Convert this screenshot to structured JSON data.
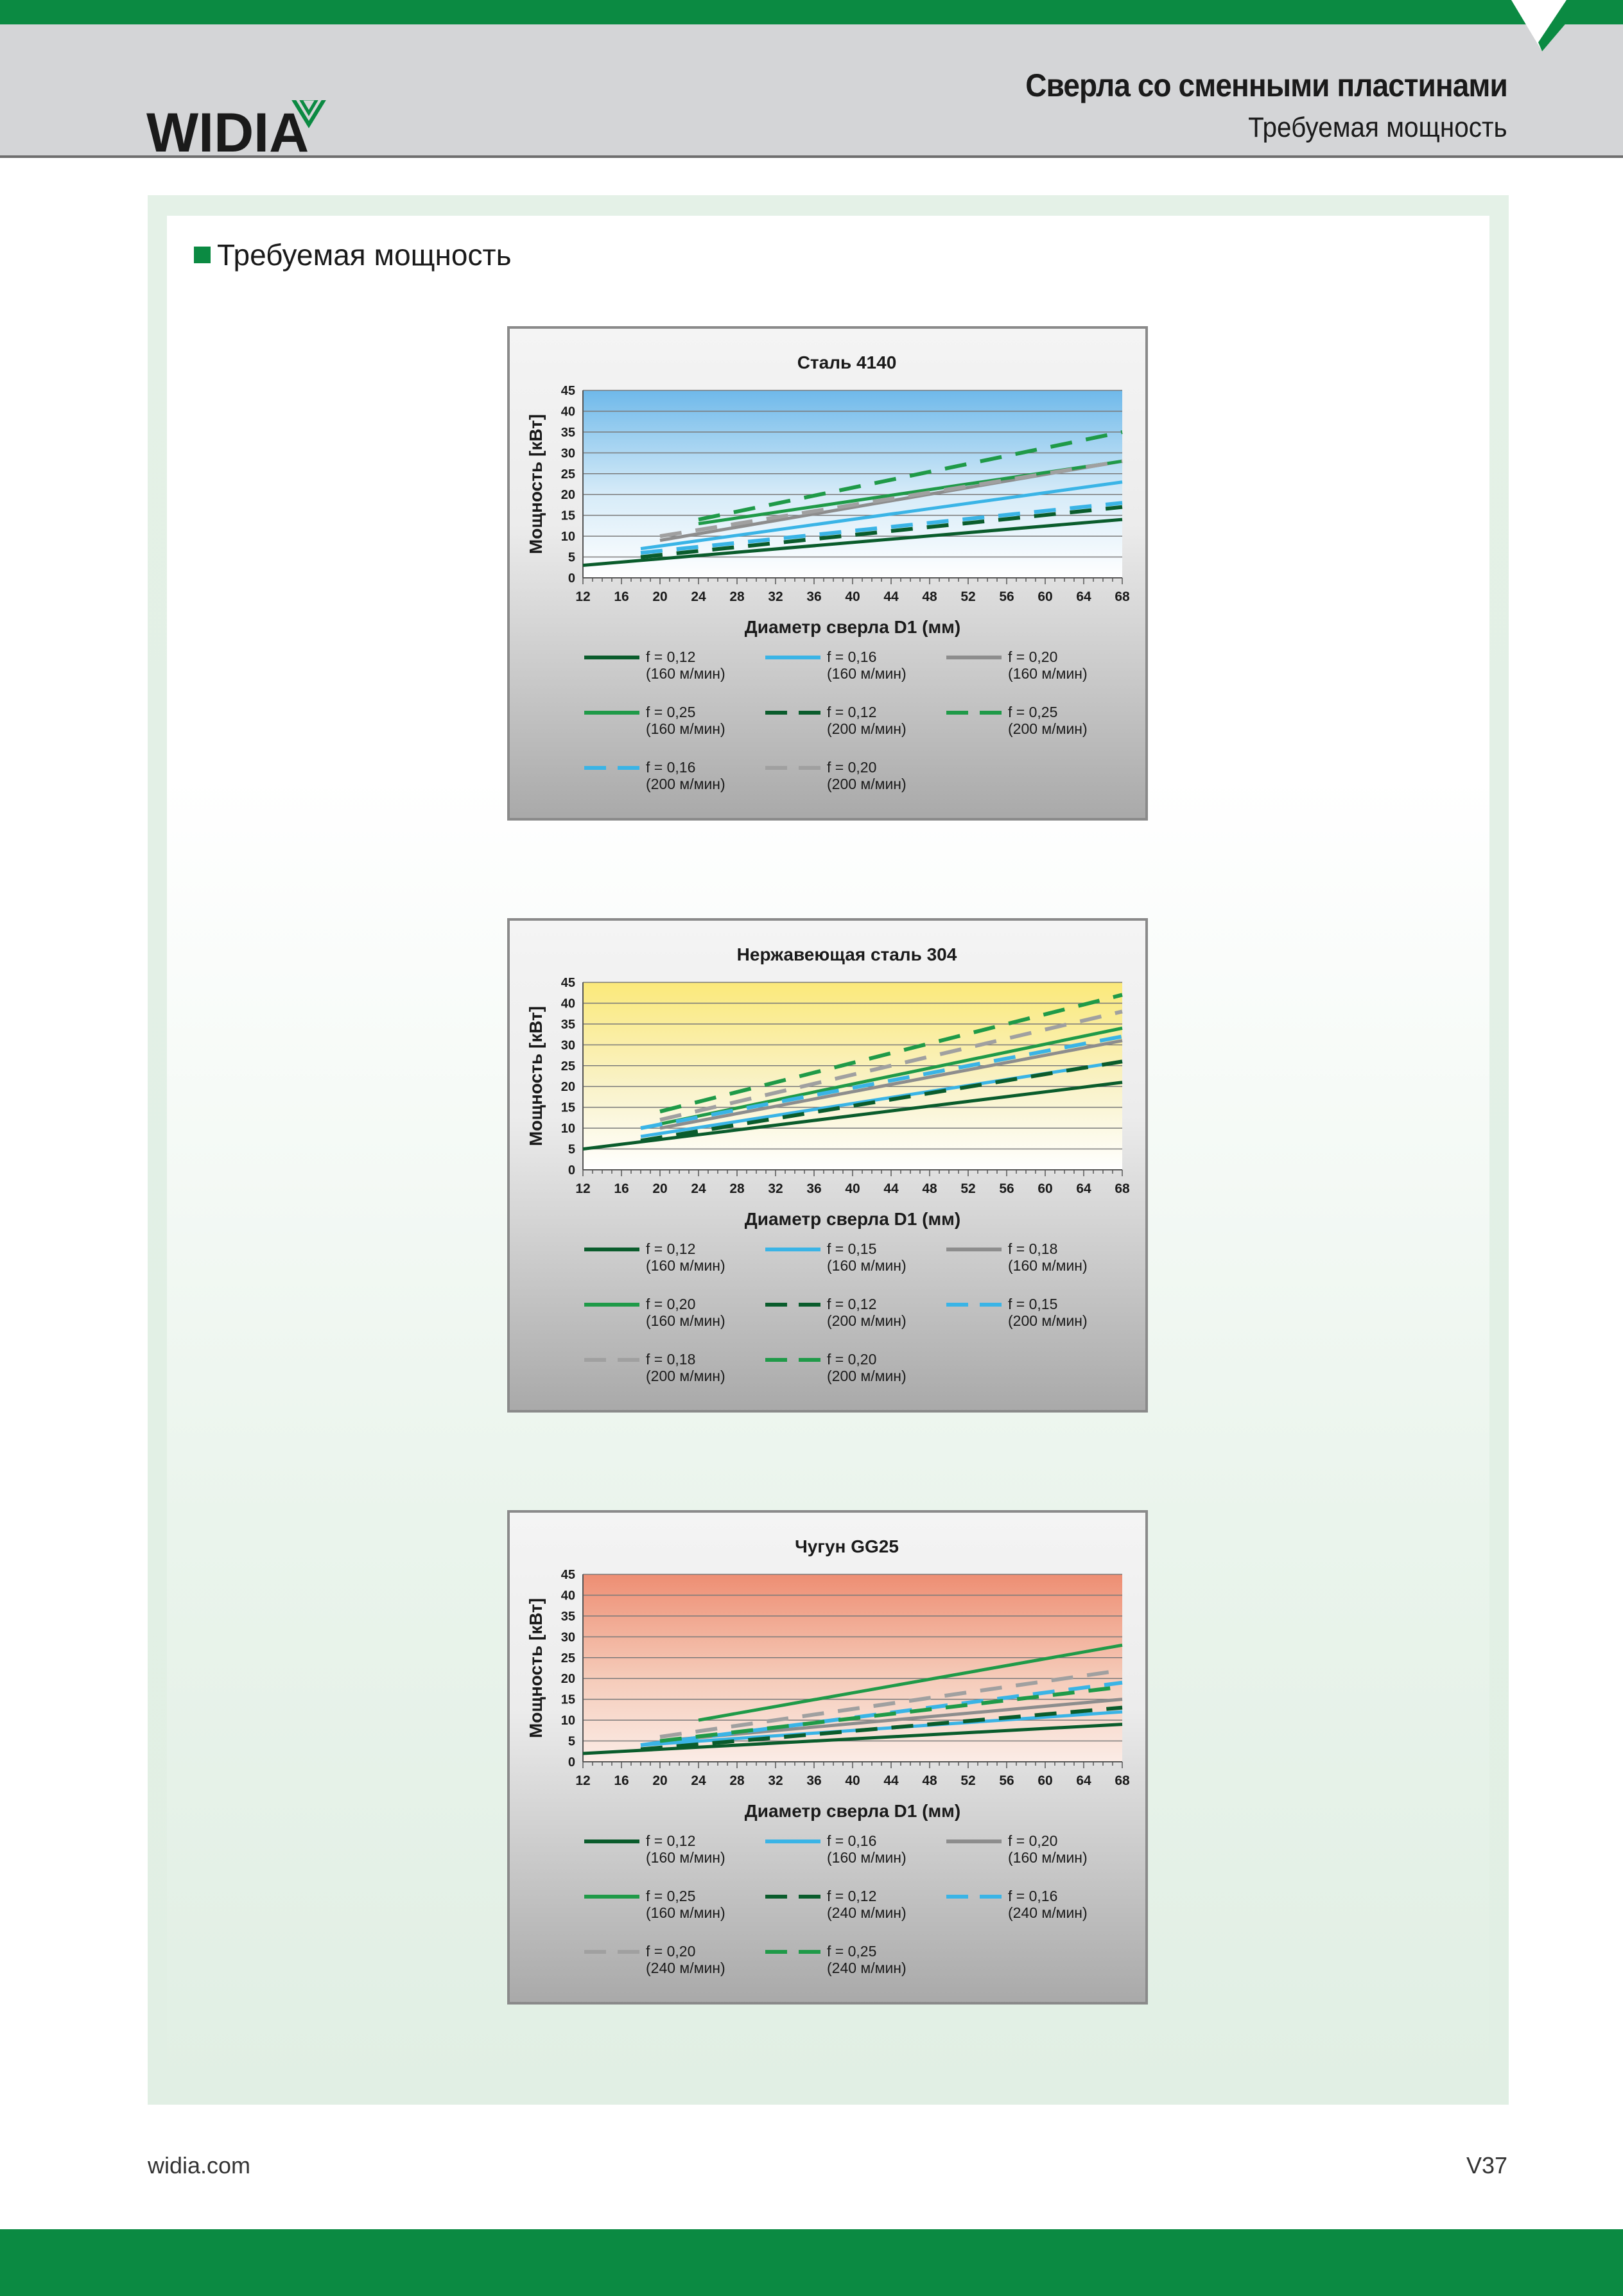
{
  "header": {
    "brand": "WIDIA",
    "title": "Сверла со сменными пластинами",
    "subtitle": "Требуемая мощность"
  },
  "section_title": "Требуемая мощность",
  "footer": {
    "website": "widia.com",
    "page": "V37"
  },
  "colors": {
    "brand_green": "#0b8a42",
    "header_gray": "#d4d5d7"
  },
  "chart_data": [
    {
      "type": "line",
      "title": "Сталь 4140",
      "xlabel": "Диаметр сверла D1 (мм)",
      "ylabel": "Мощность [кВт]",
      "xlim": [
        12,
        68
      ],
      "ylim": [
        0,
        45
      ],
      "xticks": [
        12,
        16,
        20,
        24,
        28,
        32,
        36,
        40,
        44,
        48,
        52,
        56,
        60,
        64,
        68
      ],
      "yticks": [
        0,
        5,
        10,
        15,
        20,
        25,
        30,
        35,
        40,
        45
      ],
      "background": "blue-gradient",
      "legend_position": "bottom",
      "series": [
        {
          "name": "f = 0,12",
          "sub": "(160 м/мин)",
          "color": "#0a5c2c",
          "dash": false,
          "x": [
            12,
            68
          ],
          "y": [
            3,
            14
          ]
        },
        {
          "name": "f = 0,16",
          "sub": "(160 м/мин)",
          "color": "#3ab4e6",
          "dash": false,
          "x": [
            18,
            68
          ],
          "y": [
            7,
            23
          ]
        },
        {
          "name": "f = 0,20",
          "sub": "(160 м/мин)",
          "color": "#8d8d8d",
          "dash": false,
          "x": [
            20,
            68
          ],
          "y": [
            9,
            28
          ]
        },
        {
          "name": "f = 0,25",
          "sub": "(160 м/мин)",
          "color": "#1f9a48",
          "dash": false,
          "x": [
            24,
            68
          ],
          "y": [
            13,
            28
          ]
        },
        {
          "name": "f = 0,12",
          "sub": "(200 м/мин)",
          "color": "#0a5c2c",
          "dash": true,
          "x": [
            18,
            68
          ],
          "y": [
            5,
            17
          ]
        },
        {
          "name": "f = 0,25",
          "sub": "(200 м/мин)",
          "color": "#1f9a48",
          "dash": true,
          "x": [
            24,
            68
          ],
          "y": [
            14,
            35
          ]
        },
        {
          "name": "f = 0,16",
          "sub": "(200 м/мин)",
          "color": "#3ab4e6",
          "dash": true,
          "x": [
            18,
            68
          ],
          "y": [
            6,
            18
          ]
        },
        {
          "name": "f = 0,20",
          "sub": "(200 м/мин)",
          "color": "#a0a0a0",
          "dash": true,
          "x": [
            20,
            68
          ],
          "y": [
            10,
            28
          ]
        }
      ]
    },
    {
      "type": "line",
      "title": "Нержавеющая сталь 304",
      "xlabel": "Диаметр сверла D1 (мм)",
      "ylabel": "Мощность [кВт]",
      "xlim": [
        12,
        68
      ],
      "ylim": [
        0,
        45
      ],
      "xticks": [
        12,
        16,
        20,
        24,
        28,
        32,
        36,
        40,
        44,
        48,
        52,
        56,
        60,
        64,
        68
      ],
      "yticks": [
        0,
        5,
        10,
        15,
        20,
        25,
        30,
        35,
        40,
        45
      ],
      "background": "yellow-gradient",
      "legend_position": "bottom",
      "series": [
        {
          "name": "f = 0,12",
          "sub": "(160 м/мин)",
          "color": "#0a5c2c",
          "dash": false,
          "x": [
            12,
            68
          ],
          "y": [
            5,
            21
          ]
        },
        {
          "name": "f = 0,15",
          "sub": "(160 м/мин)",
          "color": "#3ab4e6",
          "dash": false,
          "x": [
            18,
            68
          ],
          "y": [
            8,
            26
          ]
        },
        {
          "name": "f = 0,18",
          "sub": "(160 м/мин)",
          "color": "#8d8d8d",
          "dash": false,
          "x": [
            20,
            68
          ],
          "y": [
            10,
            31
          ]
        },
        {
          "name": "f = 0,20",
          "sub": "(160 м/мин)",
          "color": "#1f9a48",
          "dash": false,
          "x": [
            20,
            68
          ],
          "y": [
            11,
            34
          ]
        },
        {
          "name": "f = 0,12",
          "sub": "(200 м/мин)",
          "color": "#0a5c2c",
          "dash": true,
          "x": [
            18,
            68
          ],
          "y": [
            7,
            26
          ]
        },
        {
          "name": "f = 0,15",
          "sub": "(200 м/мин)",
          "color": "#3ab4e6",
          "dash": true,
          "x": [
            18,
            68
          ],
          "y": [
            10,
            32
          ]
        },
        {
          "name": "f = 0,18",
          "sub": "(200 м/мин)",
          "color": "#a0a0a0",
          "dash": true,
          "x": [
            20,
            68
          ],
          "y": [
            12,
            38
          ]
        },
        {
          "name": "f = 0,20",
          "sub": "(200 м/мин)",
          "color": "#1f9a48",
          "dash": true,
          "x": [
            20,
            68
          ],
          "y": [
            14,
            42
          ]
        }
      ]
    },
    {
      "type": "line",
      "title": "Чугун GG25",
      "xlabel": "Диаметр сверла D1 (мм)",
      "ylabel": "Мощность [кВт]",
      "xlim": [
        12,
        68
      ],
      "ylim": [
        0,
        45
      ],
      "xticks": [
        12,
        16,
        20,
        24,
        28,
        32,
        36,
        40,
        44,
        48,
        52,
        56,
        60,
        64,
        68
      ],
      "yticks": [
        0,
        5,
        10,
        15,
        20,
        25,
        30,
        35,
        40,
        45
      ],
      "background": "salmon-gradient",
      "legend_position": "bottom",
      "series": [
        {
          "name": "f = 0,12",
          "sub": "(160 м/мин)",
          "color": "#0a5c2c",
          "dash": false,
          "x": [
            12,
            68
          ],
          "y": [
            2,
            9
          ]
        },
        {
          "name": "f = 0,16",
          "sub": "(160 м/мин)",
          "color": "#3ab4e6",
          "dash": false,
          "x": [
            18,
            68
          ],
          "y": [
            4,
            12
          ]
        },
        {
          "name": "f = 0,20",
          "sub": "(160 м/мин)",
          "color": "#8d8d8d",
          "dash": false,
          "x": [
            20,
            68
          ],
          "y": [
            5,
            15
          ]
        },
        {
          "name": "f = 0,25",
          "sub": "(160 м/мин)",
          "color": "#1f9a48",
          "dash": false,
          "x": [
            24,
            68
          ],
          "y": [
            10,
            28
          ]
        },
        {
          "name": "f = 0,12",
          "sub": "(240 м/мин)",
          "color": "#0a5c2c",
          "dash": true,
          "x": [
            18,
            68
          ],
          "y": [
            3,
            13
          ]
        },
        {
          "name": "f = 0,16",
          "sub": "(240 м/мин)",
          "color": "#3ab4e6",
          "dash": true,
          "x": [
            18,
            68
          ],
          "y": [
            4,
            19
          ]
        },
        {
          "name": "f = 0,20",
          "sub": "(240 м/мин)",
          "color": "#a0a0a0",
          "dash": true,
          "x": [
            20,
            68
          ],
          "y": [
            6,
            22
          ]
        },
        {
          "name": "f = 0,25",
          "sub": "(240 м/мин)",
          "color": "#1f9a48",
          "dash": true,
          "x": [
            20,
            68
          ],
          "y": [
            5,
            18
          ]
        }
      ]
    }
  ]
}
